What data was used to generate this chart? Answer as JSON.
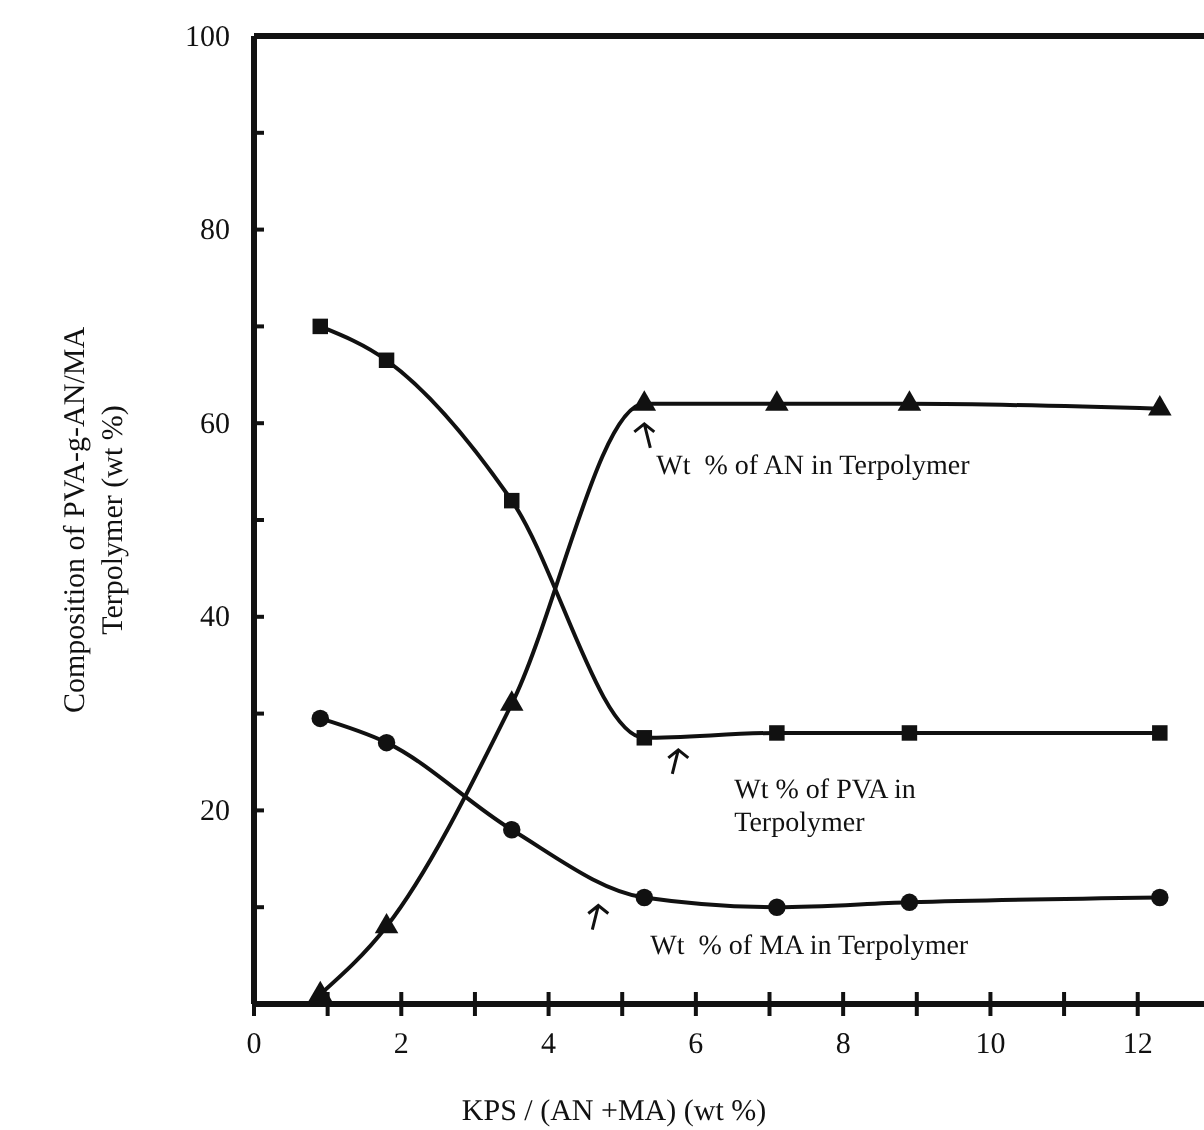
{
  "chart_data": {
    "type": "line",
    "xlabel": "KPS / (AN +MA)  (wt %)",
    "ylabel": "Composition of PVA-g-AN/MA\nTerpolymer (wt %)",
    "x": [
      0.9,
      1.8,
      3.5,
      5.3,
      7.1,
      8.9,
      12.3
    ],
    "xlim": [
      0,
      12.9
    ],
    "ylim": [
      0,
      100
    ],
    "xticks": [
      0,
      {
        "value": 1,
        "label": null
      },
      2,
      {
        "value": 3,
        "label": null
      },
      4,
      {
        "value": 5,
        "label": null
      },
      6,
      {
        "value": 7,
        "label": null
      },
      8,
      {
        "value": 9,
        "label": null
      },
      10,
      {
        "value": 11,
        "label": null
      },
      12
    ],
    "yticks": [
      {
        "value": 0,
        "label": null
      },
      {
        "value": 10,
        "label": null
      },
      20,
      {
        "value": 30,
        "label": null
      },
      40,
      {
        "value": 50,
        "label": null
      },
      60,
      {
        "value": 70,
        "label": null
      },
      80,
      {
        "value": 90,
        "label": null
      },
      100
    ],
    "series": [
      {
        "color": "#111111",
        "marker": "square",
        "values": [
          70,
          66.5,
          52,
          27.5,
          28,
          28,
          28
        ]
      },
      {
        "color": "#111111",
        "marker": "triangle",
        "values": [
          1,
          8,
          31,
          62,
          62,
          62,
          61.5
        ]
      },
      {
        "color": "#111111",
        "marker": "circle",
        "values": [
          29.5,
          27,
          18,
          11,
          10,
          10.5,
          11
        ]
      }
    ],
    "line_style": "solid",
    "grid": false,
    "annotations": [
      "Wt  % of AN in Terpolymer",
      "Wt % of PVA in\nTerpolymer",
      "Wt  % of MA in Terpolymer"
    ]
  }
}
